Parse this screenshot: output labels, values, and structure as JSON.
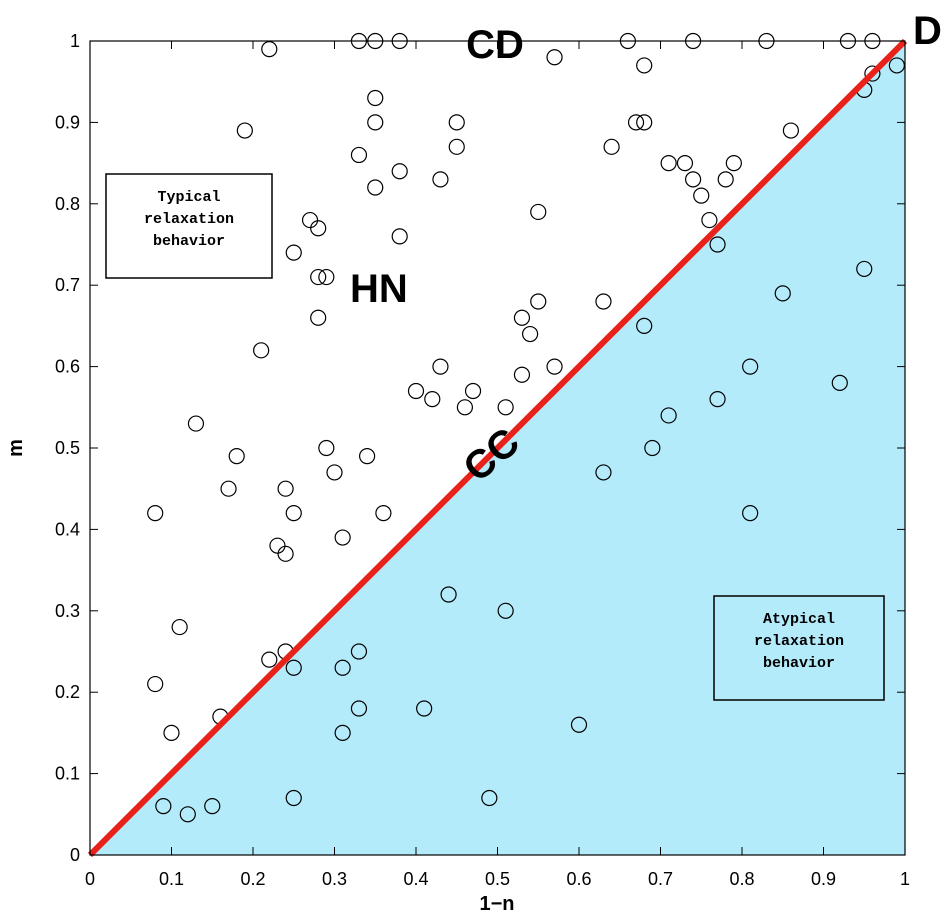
{
  "chart_data": {
    "type": "scatter",
    "xlabel": "1−n",
    "ylabel": "m",
    "xlim": [
      0,
      1
    ],
    "ylim": [
      0,
      1
    ],
    "x_ticks": [
      "0",
      "0.1",
      "0.2",
      "0.3",
      "0.4",
      "0.5",
      "0.6",
      "0.7",
      "0.8",
      "0.9",
      "1"
    ],
    "y_ticks": [
      "0",
      "0.1",
      "0.2",
      "0.3",
      "0.4",
      "0.5",
      "0.6",
      "0.7",
      "0.8",
      "0.9",
      "1"
    ],
    "grid": false,
    "diagonal_line": {
      "from": [
        0,
        0
      ],
      "to": [
        1,
        1
      ],
      "color": "#e8211b"
    },
    "region_fill_color": "#b3ebfb",
    "point_marker": "open-circle",
    "points": [
      [
        0.22,
        0.99
      ],
      [
        0.33,
        1.0
      ],
      [
        0.35,
        1.0
      ],
      [
        0.38,
        1.0
      ],
      [
        0.57,
        0.98
      ],
      [
        0.66,
        1.0
      ],
      [
        0.68,
        0.97
      ],
      [
        0.74,
        1.0
      ],
      [
        0.83,
        1.0
      ],
      [
        0.93,
        1.0
      ],
      [
        0.96,
        1.0
      ],
      [
        0.99,
        0.97
      ],
      [
        0.96,
        0.96
      ],
      [
        0.95,
        0.94
      ],
      [
        0.19,
        0.89
      ],
      [
        0.35,
        0.93
      ],
      [
        0.35,
        0.9
      ],
      [
        0.45,
        0.9
      ],
      [
        0.33,
        0.86
      ],
      [
        0.45,
        0.87
      ],
      [
        0.64,
        0.87
      ],
      [
        0.67,
        0.9
      ],
      [
        0.68,
        0.9
      ],
      [
        0.86,
        0.89
      ],
      [
        0.38,
        0.84
      ],
      [
        0.35,
        0.82
      ],
      [
        0.43,
        0.83
      ],
      [
        0.71,
        0.85
      ],
      [
        0.73,
        0.85
      ],
      [
        0.74,
        0.83
      ],
      [
        0.75,
        0.81
      ],
      [
        0.78,
        0.83
      ],
      [
        0.79,
        0.85
      ],
      [
        0.27,
        0.78
      ],
      [
        0.28,
        0.77
      ],
      [
        0.55,
        0.79
      ],
      [
        0.76,
        0.78
      ],
      [
        0.38,
        0.76
      ],
      [
        0.77,
        0.75
      ],
      [
        0.25,
        0.74
      ],
      [
        0.28,
        0.71
      ],
      [
        0.29,
        0.71
      ],
      [
        0.28,
        0.66
      ],
      [
        0.53,
        0.66
      ],
      [
        0.55,
        0.68
      ],
      [
        0.54,
        0.64
      ],
      [
        0.63,
        0.68
      ],
      [
        0.68,
        0.65
      ],
      [
        0.85,
        0.69
      ],
      [
        0.95,
        0.72
      ],
      [
        0.21,
        0.62
      ],
      [
        0.43,
        0.6
      ],
      [
        0.57,
        0.6
      ],
      [
        0.81,
        0.6
      ],
      [
        0.4,
        0.57
      ],
      [
        0.42,
        0.56
      ],
      [
        0.47,
        0.57
      ],
      [
        0.46,
        0.55
      ],
      [
        0.53,
        0.59
      ],
      [
        0.51,
        0.55
      ],
      [
        0.77,
        0.56
      ],
      [
        0.92,
        0.58
      ],
      [
        0.71,
        0.54
      ],
      [
        0.13,
        0.53
      ],
      [
        0.18,
        0.49
      ],
      [
        0.29,
        0.5
      ],
      [
        0.3,
        0.47
      ],
      [
        0.34,
        0.49
      ],
      [
        0.17,
        0.45
      ],
      [
        0.24,
        0.45
      ],
      [
        0.25,
        0.42
      ],
      [
        0.36,
        0.42
      ],
      [
        0.08,
        0.42
      ],
      [
        0.69,
        0.5
      ],
      [
        0.63,
        0.47
      ],
      [
        0.81,
        0.42
      ],
      [
        0.31,
        0.39
      ],
      [
        0.23,
        0.38
      ],
      [
        0.24,
        0.37
      ],
      [
        0.44,
        0.32
      ],
      [
        0.51,
        0.3
      ],
      [
        0.11,
        0.28
      ],
      [
        0.22,
        0.24
      ],
      [
        0.24,
        0.25
      ],
      [
        0.25,
        0.23
      ],
      [
        0.31,
        0.23
      ],
      [
        0.33,
        0.25
      ],
      [
        0.08,
        0.21
      ],
      [
        0.33,
        0.18
      ],
      [
        0.41,
        0.18
      ],
      [
        0.16,
        0.17
      ],
      [
        0.1,
        0.15
      ],
      [
        0.31,
        0.15
      ],
      [
        0.6,
        0.16
      ],
      [
        0.09,
        0.06
      ],
      [
        0.12,
        0.05
      ],
      [
        0.15,
        0.06
      ],
      [
        0.25,
        0.07
      ],
      [
        0.49,
        0.07
      ]
    ]
  },
  "annotations": {
    "region_top": "Typical\nrelaxation\nbehavior",
    "region_bottom": "Atypical\nrelaxation\nbehavior",
    "label_cd": "CD",
    "label_d": "D",
    "label_hn": "HN",
    "label_cc": "CC"
  }
}
